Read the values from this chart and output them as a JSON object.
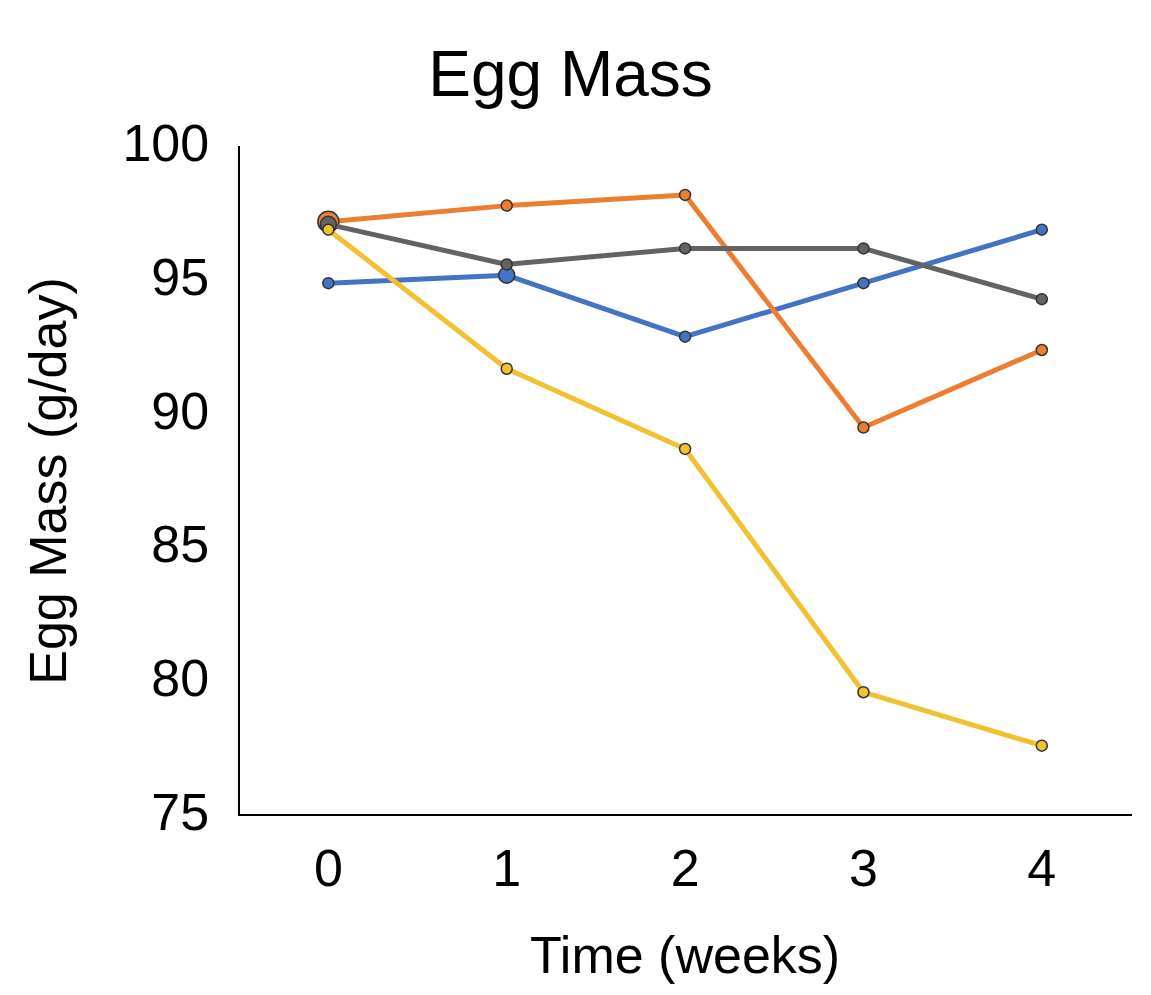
{
  "chart_data": {
    "type": "line",
    "title": "Egg Mass",
    "xlabel": "Time (weeks)",
    "ylabel": "Egg Mass (g/day)",
    "categories": [
      "0",
      "1",
      "2",
      "3",
      "4"
    ],
    "ylim": [
      75,
      100
    ],
    "yticks": [
      75,
      80,
      85,
      90,
      95,
      100
    ],
    "grid": false,
    "legend": false,
    "marker": "circle",
    "line_style": "solid",
    "series": [
      {
        "color": "#4472c4",
        "values": [
          94.9,
          95.2,
          92.9,
          94.9,
          96.9
        ]
      },
      {
        "color": "#ed7d31",
        "values": [
          97.2,
          97.8,
          98.2,
          89.5,
          92.4
        ]
      },
      {
        "color": "#636363",
        "values": [
          97.1,
          95.6,
          96.2,
          96.2,
          94.3
        ]
      },
      {
        "color": "#f0c232",
        "values": [
          96.9,
          91.7,
          88.7,
          79.6,
          77.6
        ]
      }
    ]
  }
}
